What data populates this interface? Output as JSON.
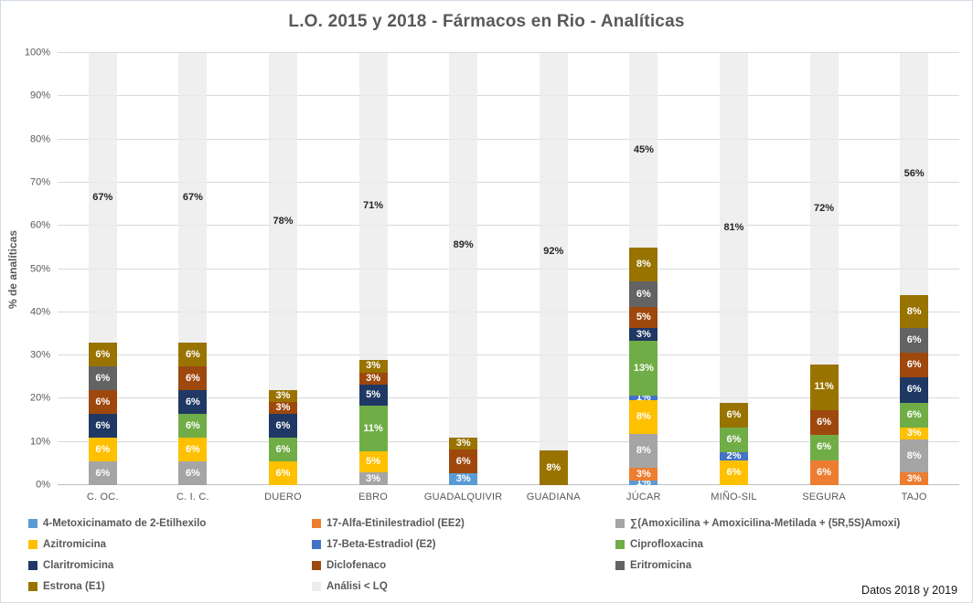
{
  "footer_note": "Datos 2018 y 2019",
  "chart_data": {
    "type": "bar",
    "stacked": true,
    "title": "L.O. 2015 y 2018 - Fármacos en Rio - Analíticas",
    "xlabel": "",
    "ylabel": "% de analíticas",
    "ylim": [
      0,
      100
    ],
    "grid": true,
    "legend_position": "bottom",
    "value_suffix": "%",
    "y_ticks": [
      "0%",
      "10%",
      "20%",
      "30%",
      "40%",
      "50%",
      "60%",
      "70%",
      "80%",
      "90%",
      "100%"
    ],
    "categories": [
      "C. OC.",
      "C. I. C.",
      "DUERO",
      "EBRO",
      "GUADALQUIVIR",
      "GUADIANA",
      "JÚCAR",
      "MIÑO-SIL",
      "SEGURA",
      "TAJO"
    ],
    "series": [
      {
        "key": "metoxicinamato",
        "name": "4-Metoxicinamato de 2-Etilhexilo",
        "color": "#5B9BD5",
        "values": [
          0,
          0,
          0,
          0,
          3,
          0,
          1,
          0,
          0,
          0
        ]
      },
      {
        "key": "etinilestradiol-ee2",
        "name": "17-Alfa-Etinilestradiol (EE2)",
        "color": "#ED7D31",
        "values": [
          0,
          0,
          0,
          0,
          0,
          0,
          3,
          0,
          6,
          3
        ]
      },
      {
        "key": "amoxicilina-sum",
        "name": "∑(Amoxicilina + Amoxicilina-Metilada + (5R,5S)Amoxi)",
        "color": "#A5A5A5",
        "values": [
          6,
          6,
          0,
          3,
          0,
          0,
          8,
          0,
          0,
          8
        ]
      },
      {
        "key": "azitromicina",
        "name": "Azitromicina",
        "color": "#FFC000",
        "values": [
          6,
          6,
          6,
          5,
          0,
          0,
          8,
          6,
          0,
          3
        ]
      },
      {
        "key": "estradiol-e2",
        "name": "17-Beta-Estradiol (E2)",
        "color": "#4472C4",
        "values": [
          0,
          0,
          0,
          0,
          0,
          0,
          1,
          2,
          0,
          0
        ]
      },
      {
        "key": "ciprofloxacina",
        "name": "Ciprofloxacina",
        "color": "#70AD47",
        "values": [
          0,
          6,
          6,
          11,
          0,
          0,
          13,
          6,
          6,
          6
        ]
      },
      {
        "key": "claritromicina",
        "name": "Claritromicina",
        "color": "#1F3864",
        "values": [
          6,
          6,
          6,
          5,
          0,
          0,
          3,
          0,
          0,
          6
        ]
      },
      {
        "key": "diclofenaco",
        "name": "Diclofenaco",
        "color": "#9E480E",
        "values": [
          6,
          6,
          3,
          3,
          6,
          0,
          5,
          0,
          6,
          6
        ]
      },
      {
        "key": "eritromicina",
        "name": "Eritromicina",
        "color": "#636363",
        "values": [
          6,
          0,
          0,
          0,
          0,
          0,
          6,
          0,
          0,
          6
        ]
      },
      {
        "key": "estrona-e1",
        "name": "Estrona (E1)",
        "color": "#997300",
        "values": [
          6,
          6,
          3,
          3,
          3,
          8,
          8,
          6,
          11,
          8
        ]
      }
    ],
    "lq_series": {
      "key": "analisi-lq",
      "name": "Análisi < LQ",
      "color": "#EDEDED",
      "values": [
        67,
        67,
        78,
        71,
        89,
        92,
        45,
        81,
        72,
        56
      ]
    },
    "label_color_on_segments": "#FFFFFF",
    "label_color_on_lq": "#262626"
  }
}
